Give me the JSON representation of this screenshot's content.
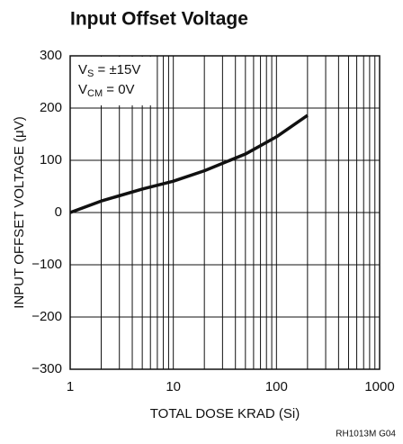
{
  "chart_data": {
    "type": "line",
    "title": "Input Offset Voltage",
    "xlabel": "TOTAL DOSE KRAD (Si)",
    "ylabel": "INPUT OFFSET VOLTAGE (μV)",
    "footnote": "RH1013M G04",
    "annotations": [
      {
        "main": "V",
        "sub": "S",
        "rest": " = ±15V"
      },
      {
        "main": "V",
        "sub": "CM",
        "rest": " = 0V"
      }
    ],
    "xscale": "log",
    "xlim": [
      1,
      1000
    ],
    "xticks": [
      1,
      10,
      100,
      1000
    ],
    "xgrid": [
      1,
      2,
      3,
      4,
      5,
      6,
      7,
      8,
      9,
      10,
      20,
      30,
      40,
      50,
      60,
      70,
      80,
      90,
      100,
      200,
      300,
      400,
      500,
      600,
      700,
      800,
      900,
      1000
    ],
    "ylim": [
      -300,
      300
    ],
    "yticks": [
      {
        "value": -300,
        "label": "−300"
      },
      {
        "value": -200,
        "label": "−200"
      },
      {
        "value": -100,
        "label": "−100"
      },
      0,
      100,
      200,
      300
    ],
    "grid": true,
    "series": [
      {
        "color": "#111111",
        "x": [
          1,
          2,
          5,
          10,
          20,
          50,
          100,
          200
        ],
        "values": [
          0,
          22,
          45,
          60,
          80,
          112,
          145,
          186
        ]
      }
    ]
  }
}
